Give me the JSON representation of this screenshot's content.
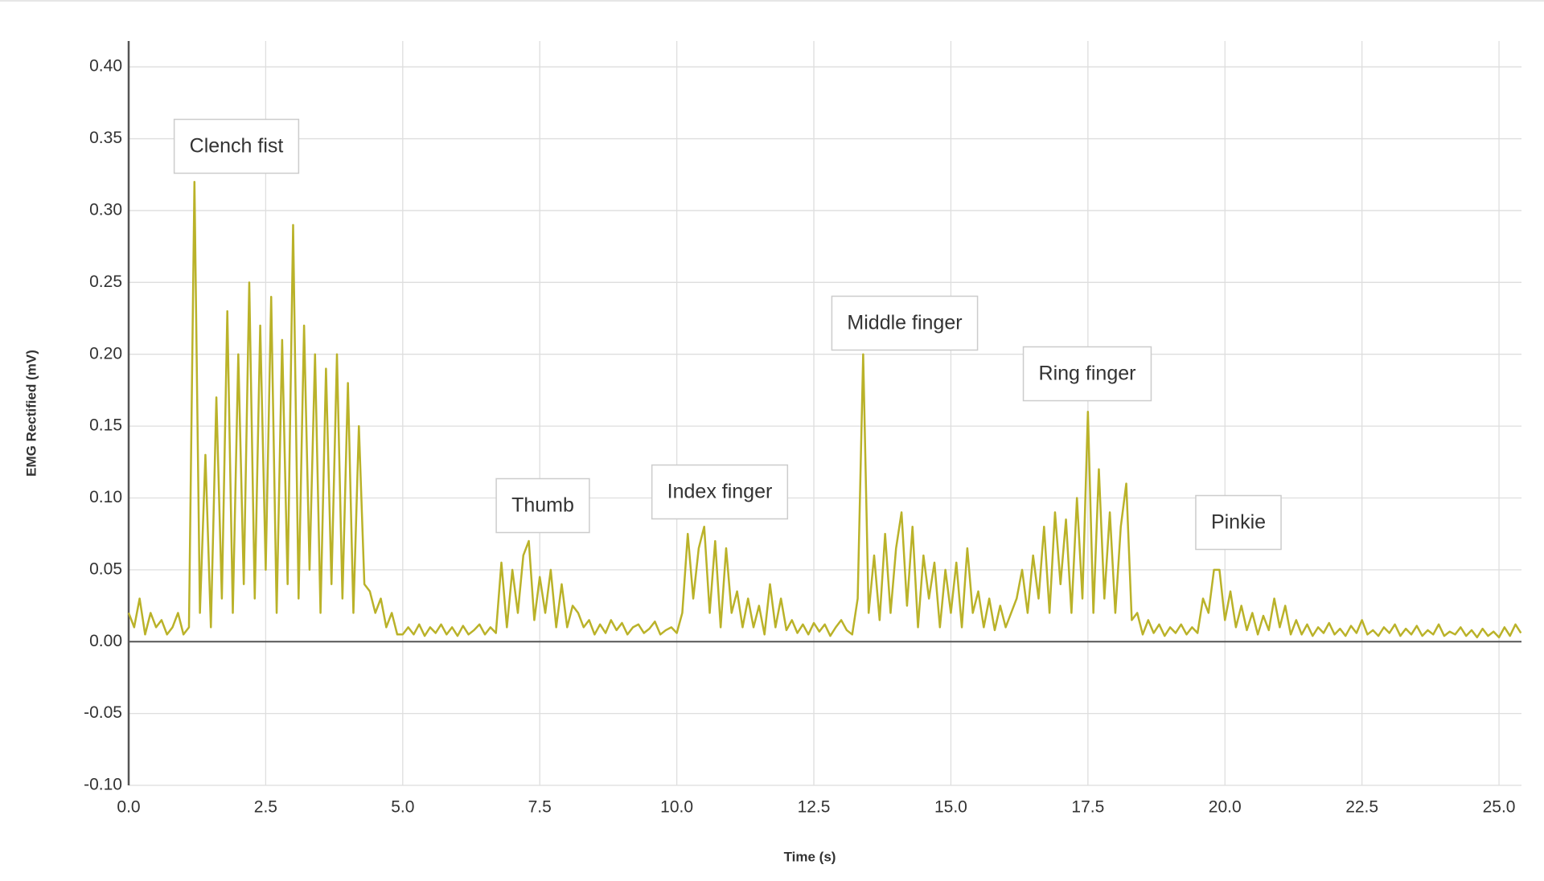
{
  "chart_data": {
    "type": "line",
    "x_label": "Time (s)",
    "y_label": "EMG Rectified (mV)",
    "color": "#bab229",
    "grid": true,
    "annotations": [
      "Clench fist",
      "Thumb",
      "Index finger",
      "Middle finger",
      "Ring finger",
      "Pinkie"
    ],
    "xlim": [
      0,
      25.41
    ],
    "ylim": [
      -0.1,
      0.418
    ],
    "xticks": [
      {
        "value": 0,
        "label": "0.0"
      },
      {
        "value": 2.5,
        "label": "2.5"
      },
      {
        "value": 5,
        "label": "5.0"
      },
      {
        "value": 7.5,
        "label": "7.5"
      },
      {
        "value": 10,
        "label": "10.0"
      },
      {
        "value": 12.5,
        "label": "12.5"
      },
      {
        "value": 15,
        "label": "15.0"
      },
      {
        "value": 17.5,
        "label": "17.5"
      },
      {
        "value": 20,
        "label": "20.0"
      },
      {
        "value": 22.5,
        "label": "22.5"
      },
      {
        "value": 25,
        "label": "25.0"
      }
    ],
    "yticks": [
      {
        "value": -0.1,
        "label": "-0.10"
      },
      {
        "value": -0.05,
        "label": "-0.05"
      },
      {
        "value": 0,
        "label": "0.00"
      },
      {
        "value": 0.05,
        "label": "0.05"
      },
      {
        "value": 0.1,
        "label": "0.10"
      },
      {
        "value": 0.15,
        "label": "0.15"
      },
      {
        "value": 0.2,
        "label": "0.20"
      },
      {
        "value": 0.25,
        "label": "0.25"
      },
      {
        "value": 0.3,
        "label": "0.30"
      },
      {
        "value": 0.35,
        "label": "0.35"
      },
      {
        "value": 0.4,
        "label": "0.40"
      }
    ],
    "x": [
      0,
      0.1,
      0.2,
      0.3,
      0.4,
      0.5,
      0.6,
      0.7,
      0.8,
      0.9,
      1,
      1.1,
      1.2,
      1.3,
      1.4,
      1.5,
      1.6,
      1.7,
      1.8,
      1.9,
      2,
      2.1,
      2.2,
      2.3,
      2.4,
      2.5,
      2.6,
      2.7,
      2.8,
      2.9,
      3,
      3.1,
      3.2,
      3.3,
      3.4,
      3.5,
      3.6,
      3.7,
      3.8,
      3.9,
      4,
      4.1,
      4.2,
      4.3,
      4.4,
      4.5,
      4.6,
      4.7,
      4.8,
      4.9,
      5,
      5.1,
      5.2,
      5.3,
      5.4,
      5.5,
      5.6,
      5.7,
      5.8,
      5.9,
      6,
      6.1,
      6.2,
      6.3,
      6.4,
      6.5,
      6.6,
      6.7,
      6.8,
      6.9,
      7,
      7.1,
      7.2,
      7.3,
      7.4,
      7.5,
      7.6,
      7.7,
      7.8,
      7.9,
      8,
      8.1,
      8.2,
      8.3,
      8.4,
      8.5,
      8.6,
      8.7,
      8.8,
      8.9,
      9,
      9.1,
      9.2,
      9.3,
      9.4,
      9.5,
      9.6,
      9.7,
      9.8,
      9.9,
      10,
      10.1,
      10.2,
      10.3,
      10.4,
      10.5,
      10.6,
      10.7,
      10.8,
      10.9,
      11,
      11.1,
      11.2,
      11.3,
      11.4,
      11.5,
      11.6,
      11.7,
      11.8,
      11.9,
      12,
      12.1,
      12.2,
      12.3,
      12.4,
      12.5,
      12.6,
      12.7,
      12.8,
      12.9,
      13,
      13.1,
      13.2,
      13.3,
      13.4,
      13.5,
      13.6,
      13.7,
      13.8,
      13.9,
      14,
      14.1,
      14.2,
      14.3,
      14.4,
      14.5,
      14.6,
      14.7,
      14.8,
      14.9,
      15,
      15.1,
      15.2,
      15.3,
      15.4,
      15.5,
      15.6,
      15.7,
      15.8,
      15.9,
      16,
      16.1,
      16.2,
      16.3,
      16.4,
      16.5,
      16.6,
      16.7,
      16.8,
      16.9,
      17,
      17.1,
      17.2,
      17.3,
      17.4,
      17.5,
      17.6,
      17.7,
      17.8,
      17.9,
      18,
      18.1,
      18.2,
      18.3,
      18.4,
      18.5,
      18.6,
      18.7,
      18.8,
      18.9,
      19,
      19.1,
      19.2,
      19.3,
      19.4,
      19.5,
      19.6,
      19.7,
      19.8,
      19.9,
      20,
      20.1,
      20.2,
      20.3,
      20.4,
      20.5,
      20.6,
      20.7,
      20.8,
      20.9,
      21,
      21.1,
      21.2,
      21.3,
      21.4,
      21.5,
      21.6,
      21.7,
      21.8,
      21.9,
      22,
      22.1,
      22.2,
      22.3,
      22.4,
      22.5,
      22.6,
      22.7,
      22.8,
      22.9,
      23,
      23.1,
      23.2,
      23.3,
      23.4,
      23.5,
      23.6,
      23.7,
      23.8,
      23.9,
      24,
      24.1,
      24.2,
      24.3,
      24.4,
      24.5,
      24.6,
      24.7,
      24.8,
      24.9,
      25,
      25.1,
      25.2,
      25.3,
      25.4
    ],
    "values": [
      0.02,
      0.01,
      0.03,
      0.005,
      0.02,
      0.01,
      0.015,
      0.005,
      0.01,
      0.02,
      0.005,
      0.01,
      0.32,
      0.02,
      0.13,
      0.01,
      0.17,
      0.03,
      0.23,
      0.02,
      0.2,
      0.04,
      0.25,
      0.03,
      0.22,
      0.05,
      0.24,
      0.02,
      0.21,
      0.04,
      0.29,
      0.03,
      0.22,
      0.05,
      0.2,
      0.02,
      0.19,
      0.04,
      0.2,
      0.03,
      0.18,
      0.02,
      0.15,
      0.04,
      0.035,
      0.02,
      0.03,
      0.01,
      0.02,
      0.005,
      0.005,
      0.01,
      0.005,
      0.012,
      0.004,
      0.01,
      0.006,
      0.012,
      0.005,
      0.01,
      0.004,
      0.011,
      0.005,
      0.008,
      0.012,
      0.005,
      0.01,
      0.006,
      0.055,
      0.01,
      0.05,
      0.02,
      0.06,
      0.07,
      0.015,
      0.045,
      0.02,
      0.05,
      0.01,
      0.04,
      0.01,
      0.025,
      0.02,
      0.01,
      0.015,
      0.005,
      0.012,
      0.006,
      0.015,
      0.008,
      0.013,
      0.005,
      0.01,
      0.012,
      0.006,
      0.009,
      0.014,
      0.005,
      0.008,
      0.01,
      0.006,
      0.02,
      0.075,
      0.03,
      0.065,
      0.08,
      0.02,
      0.07,
      0.01,
      0.065,
      0.02,
      0.035,
      0.01,
      0.03,
      0.01,
      0.025,
      0.005,
      0.04,
      0.01,
      0.03,
      0.008,
      0.015,
      0.006,
      0.012,
      0.005,
      0.013,
      0.007,
      0.012,
      0.004,
      0.01,
      0.015,
      0.008,
      0.005,
      0.03,
      0.2,
      0.02,
      0.06,
      0.015,
      0.075,
      0.02,
      0.065,
      0.09,
      0.025,
      0.08,
      0.01,
      0.06,
      0.03,
      0.055,
      0.01,
      0.05,
      0.02,
      0.055,
      0.01,
      0.065,
      0.02,
      0.035,
      0.01,
      0.03,
      0.008,
      0.025,
      0.01,
      0.02,
      0.03,
      0.05,
      0.02,
      0.06,
      0.03,
      0.08,
      0.02,
      0.09,
      0.04,
      0.085,
      0.02,
      0.1,
      0.03,
      0.16,
      0.02,
      0.12,
      0.03,
      0.09,
      0.02,
      0.08,
      0.11,
      0.015,
      0.02,
      0.005,
      0.015,
      0.006,
      0.012,
      0.004,
      0.01,
      0.006,
      0.012,
      0.005,
      0.01,
      0.006,
      0.03,
      0.02,
      0.05,
      0.05,
      0.015,
      0.035,
      0.01,
      0.025,
      0.008,
      0.02,
      0.005,
      0.018,
      0.008,
      0.03,
      0.01,
      0.025,
      0.005,
      0.015,
      0.005,
      0.012,
      0.004,
      0.01,
      0.006,
      0.013,
      0.005,
      0.009,
      0.004,
      0.011,
      0.006,
      0.015,
      0.005,
      0.008,
      0.004,
      0.01,
      0.006,
      0.012,
      0.004,
      0.009,
      0.005,
      0.011,
      0.004,
      0.008,
      0.005,
      0.012,
      0.004,
      0.007,
      0.005,
      0.01,
      0.004,
      0.008,
      0.003,
      0.009,
      0.004,
      0.007,
      0.003,
      0.01,
      0.004,
      0.012,
      0.006
    ]
  }
}
